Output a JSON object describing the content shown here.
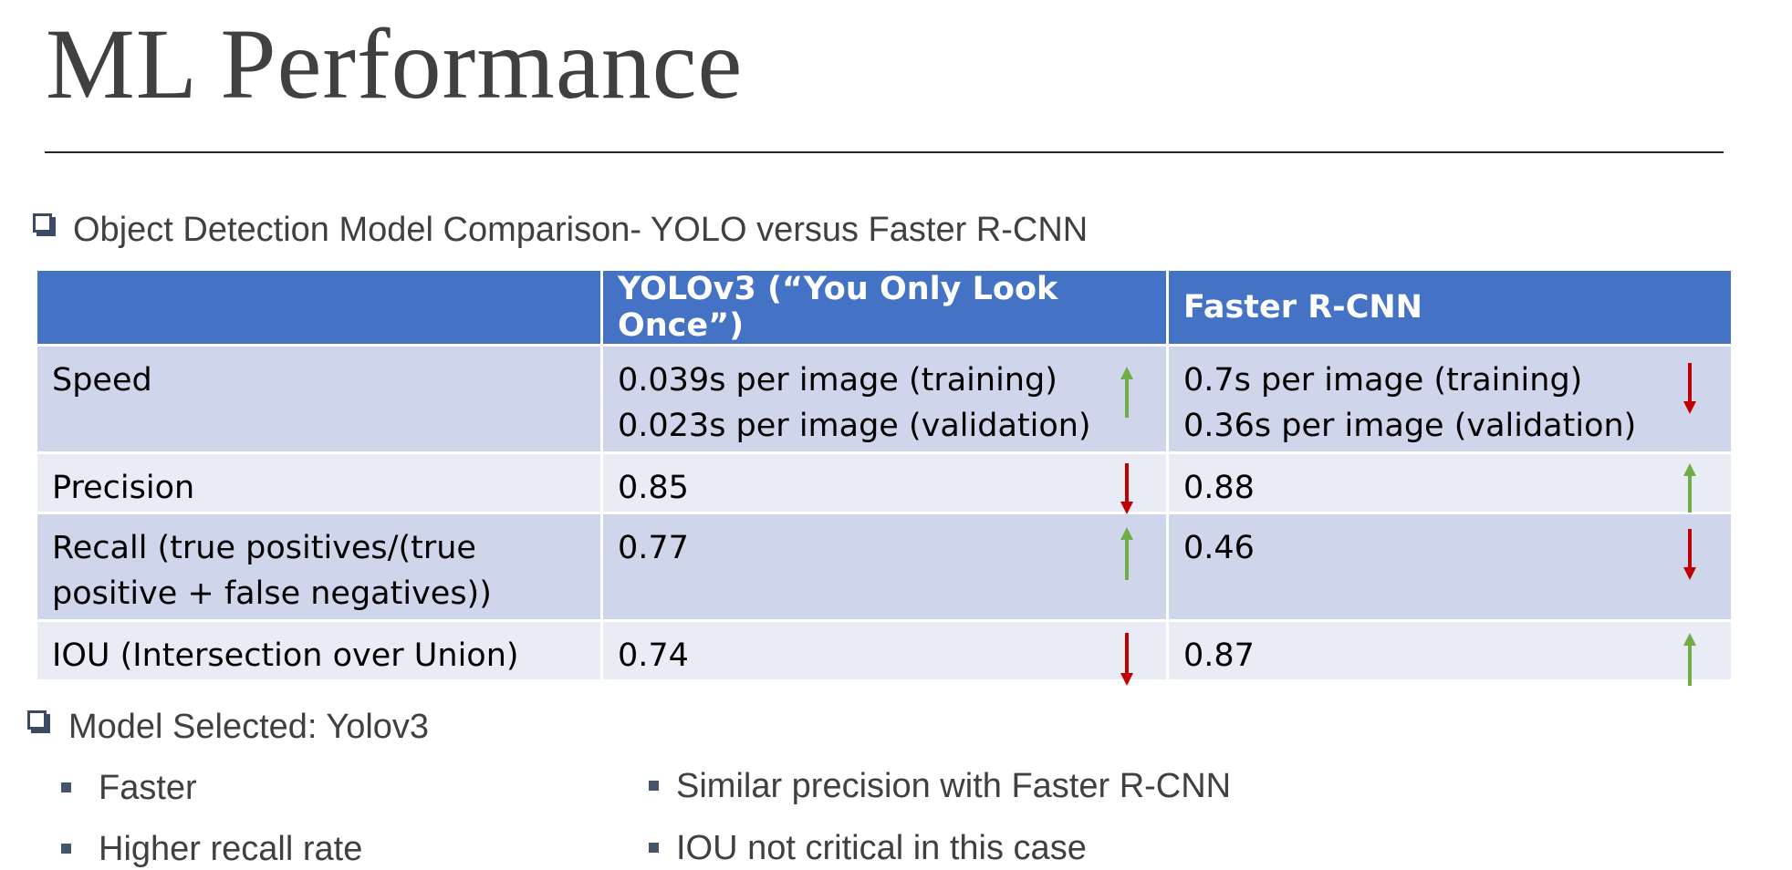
{
  "slide": {
    "title": "ML Performance"
  },
  "comparison": {
    "heading": "Object Detection Model Comparison- YOLO versus Faster R-CNN",
    "columns": [
      "",
      "YOLOv3 (“You Only Look Once”)",
      "Faster R-CNN"
    ],
    "rows": [
      {
        "metric_lines": [
          "Speed"
        ],
        "yolo_lines": [
          "0.039s per image (training)",
          "0.023s per image (validation)"
        ],
        "yolo_trend": "up",
        "frcnn_lines": [
          "0.7s per image (training)",
          "0.36s per image (validation)"
        ],
        "frcnn_trend": "down"
      },
      {
        "metric_lines": [
          "Precision"
        ],
        "yolo_lines": [
          "0.85"
        ],
        "yolo_trend": "down",
        "frcnn_lines": [
          "0.88"
        ],
        "frcnn_trend": "up"
      },
      {
        "metric_lines": [
          "Recall (true positives/(true",
          "positive + false negatives))"
        ],
        "yolo_lines": [
          "0.77"
        ],
        "yolo_trend": "up",
        "frcnn_lines": [
          "0.46"
        ],
        "frcnn_trend": "down"
      },
      {
        "metric_lines": [
          "IOU (Intersection over Union)"
        ],
        "yolo_lines": [
          "0.74"
        ],
        "yolo_trend": "down",
        "frcnn_lines": [
          "0.87"
        ],
        "frcnn_trend": "up"
      }
    ],
    "colors": {
      "header_bg": "#4472c4",
      "row_odd": "#cfd5ea",
      "row_even": "#e9ebf5",
      "arrow_up": "#70ad47",
      "arrow_down": "#c00000"
    }
  },
  "selection": {
    "heading": "Model Selected: Yolov3",
    "bullets_left": [
      "Faster",
      "Higher recall rate"
    ],
    "bullets_right": [
      "Similar precision with Faster R-CNN",
      "IOU not critical in this case"
    ]
  }
}
